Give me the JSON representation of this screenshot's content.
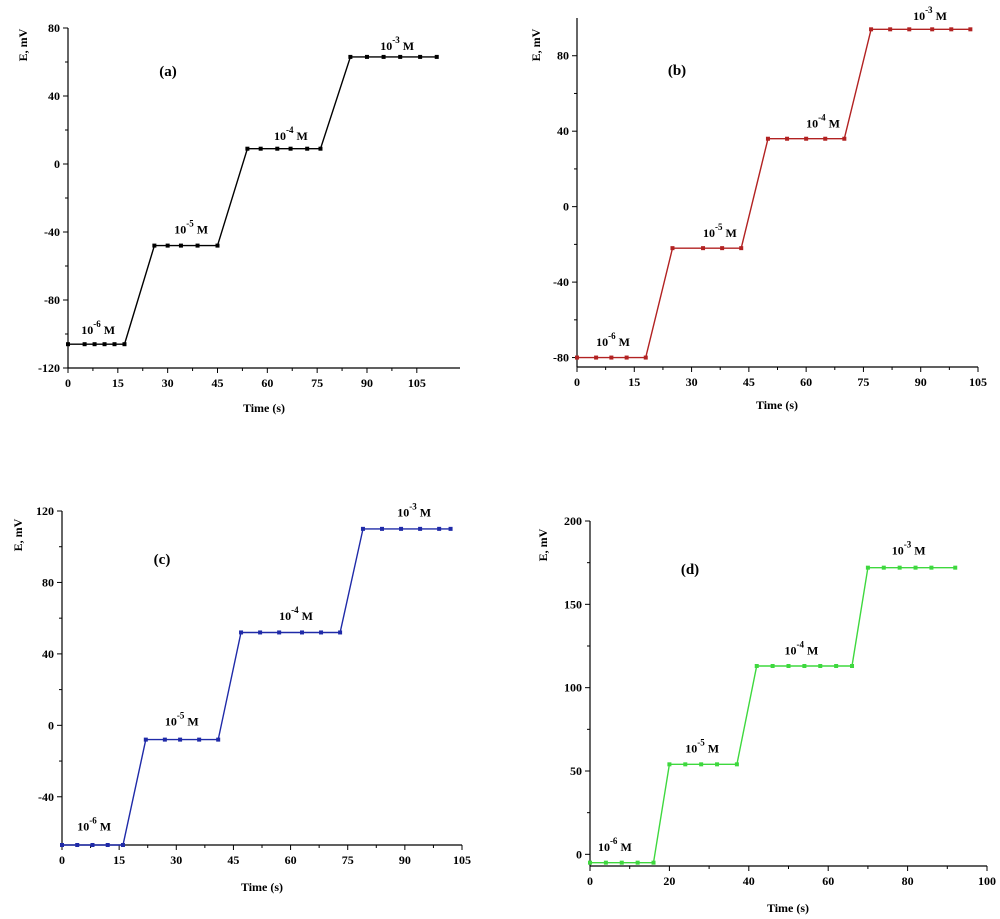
{
  "chart_data": [
    {
      "type": "line",
      "panel_label": "(a)",
      "xlabel": "Time (s)",
      "ylabel": "E, mV",
      "color": "#000000",
      "xlim": [
        0,
        118
      ],
      "ylim": [
        -120,
        80
      ],
      "xticks": [
        0,
        15,
        30,
        45,
        60,
        75,
        90,
        105
      ],
      "yticks": [
        -120,
        -80,
        -40,
        0,
        40,
        80
      ],
      "series": [
        {
          "x": [
            0,
            5,
            8,
            11,
            14,
            17,
            26,
            30,
            34,
            39,
            45,
            54,
            58,
            63,
            67,
            72,
            76,
            85,
            90,
            95,
            100,
            106,
            111
          ],
          "y": [
            -106,
            -106,
            -106,
            -106,
            -106,
            -106,
            -48,
            -48,
            -48,
            -48,
            -48,
            9,
            9,
            9,
            9,
            9,
            9,
            63,
            63,
            63,
            63,
            63,
            63
          ]
        }
      ],
      "annotations": [
        {
          "base": "10",
          "exp": "-6",
          "unit": " M",
          "x": 4,
          "y": -100
        },
        {
          "base": "10",
          "exp": "-5",
          "unit": " M",
          "x": 32,
          "y": -41
        },
        {
          "base": "10",
          "exp": "-4",
          "unit": " M",
          "x": 62,
          "y": 14
        },
        {
          "base": "10",
          "exp": "-3",
          "unit": " M",
          "x": 94,
          "y": 67
        }
      ]
    },
    {
      "type": "line",
      "panel_label": "(b)",
      "xlabel": "Time (s)",
      "ylabel": "E, mV",
      "color": "#b22222",
      "xlim": [
        0,
        105
      ],
      "ylim": [
        -85,
        100
      ],
      "xticks": [
        0,
        15,
        30,
        45,
        60,
        75,
        90,
        105
      ],
      "yticks": [
        -80,
        -40,
        0,
        40,
        80
      ],
      "series": [
        {
          "x": [
            0,
            5,
            9,
            13,
            18,
            25,
            33,
            38,
            43,
            50,
            55,
            60,
            65,
            70,
            77,
            82,
            87,
            93,
            98,
            103
          ],
          "y": [
            -80,
            -80,
            -80,
            -80,
            -80,
            -22,
            -22,
            -22,
            -22,
            36,
            36,
            36,
            36,
            36,
            94,
            94,
            94,
            94,
            94,
            94
          ]
        }
      ],
      "annotations": [
        {
          "base": "10",
          "exp": "-6",
          "unit": " M",
          "x": 5,
          "y": -74
        },
        {
          "base": "10",
          "exp": "-5",
          "unit": " M",
          "x": 33,
          "y": -16
        },
        {
          "base": "10",
          "exp": "-4",
          "unit": " M",
          "x": 60,
          "y": 42
        },
        {
          "base": "10",
          "exp": "-3",
          "unit": " M",
          "x": 88,
          "y": 99
        }
      ]
    },
    {
      "type": "line",
      "panel_label": "(c)",
      "xlabel": "Time (s)",
      "ylabel": "E, mV",
      "color": "#1f2aa8",
      "xlim": [
        0,
        105
      ],
      "ylim": [
        -67,
        120
      ],
      "xticks": [
        0,
        15,
        30,
        45,
        60,
        75,
        90,
        105
      ],
      "yticks": [
        -40,
        0,
        40,
        80,
        120
      ],
      "series": [
        {
          "x": [
            0,
            4,
            8,
            12,
            16,
            22,
            27,
            31,
            36,
            41,
            47,
            52,
            57,
            63,
            68,
            73,
            79,
            84,
            89,
            94,
            99,
            102
          ],
          "y": [
            -67,
            -67,
            -67,
            -67,
            -67,
            -8,
            -8,
            -8,
            -8,
            -8,
            52,
            52,
            52,
            52,
            52,
            52,
            110,
            110,
            110,
            110,
            110,
            110
          ]
        }
      ],
      "annotations": [
        {
          "base": "10",
          "exp": "-6",
          "unit": " M",
          "x": 4,
          "y": -59
        },
        {
          "base": "10",
          "exp": "-5",
          "unit": " M",
          "x": 27,
          "y": 0
        },
        {
          "base": "10",
          "exp": "-4",
          "unit": " M",
          "x": 57,
          "y": 59
        },
        {
          "base": "10",
          "exp": "-3",
          "unit": " M",
          "x": 88,
          "y": 117
        }
      ]
    },
    {
      "type": "line",
      "panel_label": "(d)",
      "xlabel": "Time (s)",
      "ylabel": "E, mV",
      "color": "#3ed83e",
      "xlim": [
        0,
        100
      ],
      "ylim": [
        -7,
        200
      ],
      "xticks": [
        0,
        20,
        40,
        60,
        80,
        100
      ],
      "yticks": [
        0,
        50,
        100,
        150,
        200
      ],
      "series": [
        {
          "x": [
            0,
            4,
            8,
            12,
            16,
            20,
            24,
            28,
            32,
            37,
            42,
            46,
            50,
            54,
            58,
            62,
            66,
            70,
            74,
            78,
            82,
            86,
            92
          ],
          "y": [
            -5,
            -5,
            -5,
            -5,
            -5,
            54,
            54,
            54,
            54,
            54,
            113,
            113,
            113,
            113,
            113,
            113,
            113,
            172,
            172,
            172,
            172,
            172,
            172
          ]
        }
      ],
      "annotations": [
        {
          "base": "10",
          "exp": "-6",
          "unit": " M",
          "x": 2,
          "y": 2
        },
        {
          "base": "10",
          "exp": "-5",
          "unit": " M",
          "x": 24,
          "y": 61
        },
        {
          "base": "10",
          "exp": "-4",
          "unit": " M",
          "x": 49,
          "y": 120
        },
        {
          "base": "10",
          "exp": "-3",
          "unit": " M",
          "x": 76,
          "y": 180
        }
      ]
    }
  ]
}
